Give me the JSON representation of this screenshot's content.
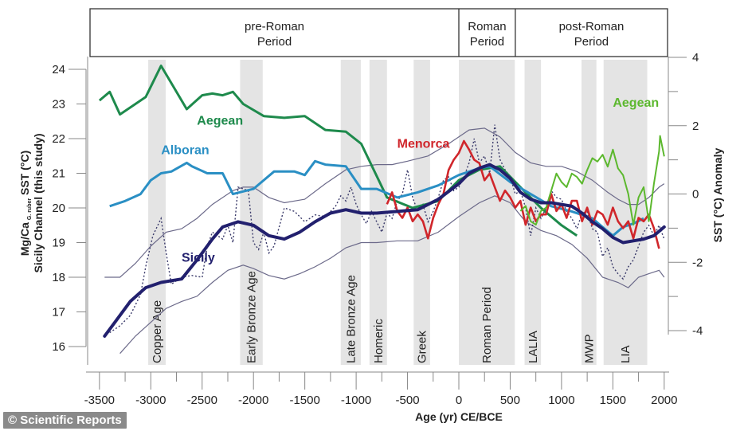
{
  "credit": "© Scientific Reports",
  "chart_data": {
    "type": "line",
    "title": "",
    "xlabel": "Age (yr) CE/BCE",
    "ylabel_left": "Mg/Ca G. ruber SST (°C) Sicily Channel (this study)",
    "ylabel_left_line1": "Mg/Ca",
    "ylabel_left_sub": "G. ruber",
    "ylabel_left_line1_tail": " SST (°C)",
    "ylabel_left_line2": "Sicily Channel (this study)",
    "ylabel_right": "SST (°C) Anomaly",
    "xlim": [
      -3600,
      2050
    ],
    "ylim_left": [
      16,
      24
    ],
    "ylim_right": [
      -4,
      4
    ],
    "x_ticks": [
      -3500,
      -3000,
      -2500,
      -2000,
      -1500,
      -1000,
      -500,
      0,
      500,
      1000,
      1500,
      2000
    ],
    "x_ticks_minor": [
      -3250,
      -2750,
      -2250,
      -1750,
      -1250,
      -750,
      -250,
      250,
      750,
      1250,
      1750
    ],
    "y_ticks_left": [
      16,
      17,
      18,
      19,
      20,
      21,
      22,
      23,
      24
    ],
    "y_ticks_right": [
      -4,
      -2,
      0,
      2,
      4
    ],
    "y_ticks_right_minor": [
      -3,
      -1,
      1,
      3
    ],
    "grid": false,
    "periods": [
      {
        "label_line1": "pre-Roman",
        "label_line2": "Period",
        "start": -3600,
        "end": 0
      },
      {
        "label_line1": "Roman",
        "label_line2": "Period",
        "start": 0,
        "end": 550
      },
      {
        "label_line1": "post-Roman",
        "label_line2": "Period",
        "start": 550,
        "end": 2050
      }
    ],
    "bands": [
      {
        "label": "Copper Age",
        "start": -3025,
        "end": -2855
      },
      {
        "label": "Early Bronze Age",
        "start": -2130,
        "end": -1910
      },
      {
        "label": "Late Bronze Age",
        "start": -1150,
        "end": -955
      },
      {
        "label": "Homeric",
        "start": -870,
        "end": -700
      },
      {
        "label": "Greek",
        "start": -440,
        "end": -280
      },
      {
        "label": "Roman Period",
        "start": 0,
        "end": 545
      },
      {
        "label": "LALIA",
        "start": 640,
        "end": 800
      },
      {
        "label": "MWP",
        "start": 1195,
        "end": 1340
      },
      {
        "label": "LIA",
        "start": 1410,
        "end": 1835
      }
    ],
    "series": [
      {
        "name": "Aegean",
        "axis": "left",
        "color": "#1e8a4c",
        "style": "solid",
        "label_at": [
          -2550,
          22.4
        ],
        "x": [
          -3500,
          -3400,
          -3300,
          -3050,
          -2900,
          -2800,
          -2650,
          -2500,
          -2400,
          -2300,
          -2200,
          -2100,
          -1900,
          -1700,
          -1500,
          -1300,
          -1100,
          -950,
          -700,
          -450,
          -200,
          0,
          200,
          400,
          600,
          800,
          1000,
          1150
        ],
        "y": [
          23.1,
          23.35,
          22.7,
          23.2,
          24.1,
          23.6,
          22.85,
          23.25,
          23.3,
          23.25,
          23.35,
          23.0,
          22.65,
          22.6,
          22.65,
          22.25,
          22.2,
          21.85,
          20.3,
          20.0,
          20.2,
          20.8,
          21.1,
          21.2,
          20.6,
          20.0,
          19.5,
          19.2
        ]
      },
      {
        "name": "Alboran",
        "axis": "left",
        "color": "#2a8fc4",
        "style": "solid",
        "label_at": [
          -2900,
          21.55
        ],
        "x": [
          -3400,
          -3250,
          -3100,
          -3000,
          -2900,
          -2800,
          -2650,
          -2600,
          -2450,
          -2300,
          -2200,
          -2000,
          -1800,
          -1600,
          -1500,
          -1400,
          -1300,
          -1100,
          -950,
          -800,
          -600,
          -400,
          -200,
          0,
          200,
          300,
          500,
          700,
          900,
          1100,
          1300,
          1500,
          1600,
          1700,
          1800
        ],
        "y": [
          20.05,
          20.2,
          20.4,
          20.8,
          21.0,
          21.05,
          21.3,
          21.2,
          21.0,
          21.0,
          20.4,
          20.55,
          21.05,
          21.05,
          20.95,
          21.35,
          21.25,
          21.2,
          20.55,
          20.55,
          20.3,
          20.45,
          20.65,
          20.95,
          21.15,
          21.2,
          20.75,
          20.4,
          20.05,
          19.9,
          19.7,
          19.2,
          19.45,
          19.55,
          19.7
        ]
      },
      {
        "name": "Menorca",
        "axis": "right",
        "color": "#d0262b",
        "style": "solid",
        "label_at": [
          -600,
          1.35
        ],
        "x": [
          -700,
          -650,
          -600,
          -550,
          -500,
          -450,
          -400,
          -350,
          -300,
          -250,
          -200,
          -150,
          -100,
          -50,
          0,
          50,
          100,
          150,
          200,
          250,
          300,
          350,
          400,
          450,
          500,
          550,
          600,
          650,
          700,
          750,
          800,
          850,
          900,
          950,
          1000,
          1050,
          1100,
          1150,
          1200,
          1250,
          1300,
          1350,
          1400,
          1450,
          1500,
          1550,
          1600,
          1650,
          1700,
          1750,
          1800,
          1850,
          1900,
          1950
        ],
        "y": [
          -0.3,
          0.05,
          -0.5,
          -0.7,
          -0.4,
          -0.8,
          -0.6,
          -0.8,
          -1.3,
          -0.7,
          -0.3,
          0.0,
          0.7,
          1.0,
          1.2,
          1.55,
          1.3,
          1.0,
          0.9,
          0.4,
          0.6,
          0.2,
          -0.2,
          0.1,
          -0.1,
          -0.4,
          -0.2,
          -0.9,
          -0.4,
          -0.8,
          -0.6,
          -0.6,
          0.0,
          -0.5,
          -0.3,
          -0.7,
          -0.2,
          -0.2,
          -0.8,
          -0.4,
          -0.9,
          -0.5,
          -0.6,
          -0.9,
          -0.4,
          -0.8,
          -1.0,
          -0.8,
          -1.3,
          -0.7,
          -0.8,
          -0.6,
          -1.0,
          -1.6
        ]
      },
      {
        "name": "Aegean (anomaly)",
        "display_label": "Aegean",
        "axis": "right",
        "color": "#5cb82e",
        "style": "solid",
        "label_at": [
          1500,
          2.55
        ],
        "x": [
          600,
          650,
          700,
          750,
          800,
          850,
          900,
          950,
          1000,
          1050,
          1100,
          1150,
          1200,
          1250,
          1300,
          1350,
          1400,
          1450,
          1500,
          1550,
          1600,
          1650,
          1700,
          1750,
          1800,
          1850,
          1900,
          1950,
          1960,
          2000
        ],
        "y": [
          -0.5,
          -0.35,
          -0.8,
          -0.9,
          -0.5,
          -0.4,
          0.1,
          0.6,
          0.35,
          0.2,
          0.6,
          0.5,
          0.3,
          0.7,
          1.05,
          0.95,
          1.15,
          0.8,
          1.3,
          0.75,
          0.55,
          0.0,
          -0.9,
          -0.1,
          0.2,
          -0.8,
          0.3,
          1.25,
          1.7,
          1.1
        ]
      }
    ],
    "sicily": {
      "name": "Sicily",
      "axis": "left",
      "label_at": [
        -2700,
        18.45
      ],
      "mean": {
        "color": "#22206e",
        "x": [
          -3450,
          -3350,
          -3200,
          -3050,
          -2900,
          -2700,
          -2550,
          -2400,
          -2300,
          -2150,
          -2000,
          -1850,
          -1700,
          -1550,
          -1400,
          -1250,
          -1100,
          -950,
          -800,
          -600,
          -400,
          -200,
          0,
          100,
          200,
          300,
          400,
          500,
          600,
          700,
          800,
          900,
          1000,
          1100,
          1200,
          1300,
          1400,
          1500,
          1600,
          1700,
          1800,
          1900,
          2000
        ],
        "y": [
          16.3,
          16.7,
          17.3,
          17.7,
          17.85,
          17.95,
          18.5,
          19.1,
          19.45,
          19.6,
          19.5,
          19.2,
          19.1,
          19.3,
          19.6,
          19.85,
          19.95,
          19.85,
          19.85,
          19.9,
          19.95,
          20.25,
          20.7,
          21.0,
          21.15,
          21.25,
          21.1,
          20.85,
          20.45,
          20.25,
          20.15,
          20.15,
          20.1,
          20.05,
          19.85,
          19.6,
          19.4,
          19.15,
          19.0,
          19.05,
          19.1,
          19.2,
          19.45
        ]
      },
      "upper": {
        "color": "#6c6a8a",
        "x": [
          -3450,
          -3300,
          -3150,
          -3000,
          -2850,
          -2700,
          -2550,
          -2400,
          -2200,
          -2100,
          -2000,
          -1850,
          -1700,
          -1500,
          -1300,
          -1100,
          -950,
          -800,
          -650,
          -500,
          -300,
          -100,
          100,
          250,
          400,
          550,
          700,
          850,
          1000,
          1150,
          1300,
          1450,
          1550,
          1650,
          1750,
          1850,
          1950,
          2000
        ],
        "y": [
          18.0,
          18.0,
          18.4,
          18.9,
          19.3,
          19.4,
          19.7,
          20.1,
          20.5,
          20.6,
          20.6,
          20.3,
          20.15,
          20.25,
          20.7,
          21.1,
          21.2,
          21.25,
          21.25,
          21.35,
          21.5,
          21.85,
          22.25,
          22.3,
          22.05,
          21.6,
          21.3,
          21.2,
          21.2,
          21.05,
          20.8,
          20.45,
          20.25,
          20.1,
          20.1,
          20.3,
          20.6,
          20.7
        ]
      },
      "lower": {
        "color": "#6c6a8a",
        "x": [
          -3300,
          -3150,
          -3000,
          -2850,
          -2700,
          -2550,
          -2400,
          -2250,
          -2100,
          -2000,
          -1850,
          -1700,
          -1550,
          -1400,
          -1250,
          -1100,
          -950,
          -800,
          -600,
          -400,
          -200,
          0,
          200,
          350,
          500,
          650,
          800,
          950,
          1100,
          1250,
          1400,
          1550,
          1650,
          1750,
          1850,
          1950,
          2000
        ],
        "y": [
          15.8,
          16.3,
          16.7,
          17.1,
          17.3,
          17.45,
          17.85,
          18.2,
          18.35,
          18.25,
          18.05,
          17.95,
          18.1,
          18.3,
          18.55,
          18.85,
          19.0,
          19.0,
          19.05,
          19.05,
          19.3,
          19.75,
          20.15,
          20.35,
          20.15,
          19.6,
          19.35,
          19.2,
          18.95,
          18.55,
          18.0,
          17.85,
          17.7,
          18.0,
          18.1,
          18.2,
          18.0
        ]
      },
      "raw": {
        "color": "#3a3a6a",
        "style": "dotted",
        "x": [
          -3400,
          -3300,
          -3200,
          -3100,
          -3050,
          -2980,
          -2900,
          -2850,
          -2800,
          -2700,
          -2600,
          -2500,
          -2450,
          -2400,
          -2300,
          -2250,
          -2200,
          -2150,
          -2050,
          -2000,
          -1950,
          -1900,
          -1850,
          -1800,
          -1700,
          -1600,
          -1500,
          -1400,
          -1300,
          -1250,
          -1200,
          -1150,
          -1100,
          -1050,
          -1000,
          -950,
          -900,
          -850,
          -800,
          -750,
          -700,
          -650,
          -600,
          -550,
          -500,
          -450,
          -400,
          -350,
          -300,
          -250,
          -200,
          -150,
          -100,
          -50,
          0,
          50,
          100,
          150,
          200,
          250,
          300,
          350,
          400,
          450,
          500,
          550,
          600,
          650,
          700,
          750,
          800,
          850,
          900,
          950,
          1000,
          1050,
          1100,
          1150,
          1200,
          1250,
          1300,
          1350,
          1400,
          1450,
          1500,
          1550,
          1600,
          1650,
          1700,
          1750,
          1800,
          1850,
          1900,
          1950,
          2000
        ],
        "y": [
          16.4,
          16.6,
          16.9,
          17.5,
          18.3,
          19.2,
          19.7,
          18.7,
          17.8,
          18.0,
          18.05,
          18.0,
          18.9,
          19.3,
          19.1,
          19.5,
          19.0,
          20.6,
          20.5,
          19.0,
          18.8,
          19.3,
          18.7,
          18.9,
          20.0,
          19.9,
          19.6,
          19.8,
          19.75,
          19.9,
          20.05,
          20.35,
          20.2,
          20.6,
          20.1,
          19.8,
          19.55,
          19.9,
          19.6,
          19.3,
          19.85,
          19.7,
          20.2,
          20.4,
          21.1,
          20.3,
          19.9,
          20.1,
          19.6,
          19.9,
          20.3,
          20.8,
          20.9,
          20.5,
          20.6,
          20.9,
          21.3,
          22.0,
          21.3,
          21.5,
          21.0,
          22.4,
          21.4,
          21.1,
          20.9,
          20.4,
          20.5,
          20.0,
          19.2,
          20.0,
          19.7,
          20.0,
          20.5,
          20.3,
          20.25,
          19.9,
          19.7,
          19.4,
          19.85,
          19.9,
          19.4,
          19.3,
          18.6,
          18.85,
          18.3,
          18.1,
          17.95,
          18.3,
          18.5,
          18.9,
          19.3,
          19.5,
          19.2,
          19.5,
          19.1
        ]
      }
    }
  }
}
